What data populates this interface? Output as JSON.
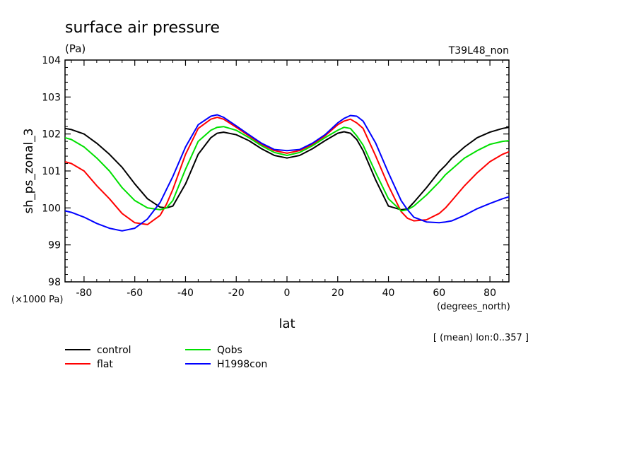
{
  "chart_data": {
    "type": "line",
    "title": "surface air pressure",
    "units_label": "(Pa)",
    "run_label": "T39L48_non",
    "ylabel": "sh_ps_zonal_3",
    "xlabel": "lat",
    "x_units": "(degrees_north)",
    "y_units": "(×1000 Pa)",
    "footnote": "[ (mean) lon:0..357 ]",
    "xlim": [
      -87.5,
      87.5
    ],
    "ylim": [
      98,
      104
    ],
    "x_ticks": [
      -80,
      -60,
      -40,
      -20,
      0,
      20,
      40,
      60,
      80
    ],
    "x_tick_labels": [
      "-80",
      "-60",
      "-40",
      "-20",
      "0",
      "20",
      "40",
      "60",
      "80"
    ],
    "y_ticks": [
      98,
      99,
      100,
      101,
      102,
      103,
      104
    ],
    "y_tick_labels": [
      "98",
      "99",
      "100",
      "101",
      "102",
      "103",
      "104"
    ],
    "grid": false,
    "legend_position": "bottom-left",
    "x": [
      -87.5,
      -85,
      -80,
      -75,
      -70,
      -65,
      -60,
      -55,
      -50,
      -47.5,
      -45,
      -40,
      -35,
      -30,
      -27.5,
      -25,
      -20,
      -15,
      -10,
      -5,
      0,
      5,
      10,
      15,
      20,
      22.5,
      25,
      27.5,
      30,
      35,
      40,
      45,
      47.5,
      50,
      55,
      60,
      62.5,
      65,
      70,
      75,
      80,
      85,
      87.5
    ],
    "series": [
      {
        "name": "control",
        "color": "#000000",
        "values": [
          102.15,
          102.12,
          102.0,
          101.75,
          101.45,
          101.1,
          100.65,
          100.25,
          100.02,
          100.0,
          100.05,
          100.65,
          101.45,
          101.9,
          102.02,
          102.05,
          101.98,
          101.82,
          101.6,
          101.42,
          101.35,
          101.42,
          101.6,
          101.82,
          102.02,
          102.06,
          102.02,
          101.85,
          101.55,
          100.75,
          100.05,
          99.95,
          99.97,
          100.15,
          100.55,
          100.98,
          101.15,
          101.35,
          101.65,
          101.9,
          102.05,
          102.15,
          102.18
        ]
      },
      {
        "name": "flat",
        "color": "#ff0000",
        "values": [
          101.25,
          101.2,
          101.0,
          100.6,
          100.25,
          99.85,
          99.6,
          99.55,
          99.8,
          100.1,
          100.5,
          101.45,
          102.15,
          102.4,
          102.45,
          102.4,
          102.18,
          101.95,
          101.72,
          101.55,
          101.48,
          101.55,
          101.72,
          101.95,
          102.25,
          102.35,
          102.4,
          102.3,
          102.15,
          101.4,
          100.6,
          99.9,
          99.72,
          99.65,
          99.68,
          99.85,
          100.0,
          100.2,
          100.6,
          100.95,
          101.25,
          101.45,
          101.52
        ]
      },
      {
        "name": "Qobs",
        "color": "#00e000",
        "values": [
          101.9,
          101.85,
          101.65,
          101.35,
          101.0,
          100.55,
          100.2,
          100.0,
          99.95,
          100.0,
          100.2,
          101.05,
          101.8,
          102.1,
          102.18,
          102.2,
          102.1,
          101.9,
          101.68,
          101.5,
          101.42,
          101.5,
          101.68,
          101.9,
          102.1,
          102.18,
          102.15,
          101.95,
          101.7,
          100.95,
          100.25,
          99.92,
          99.95,
          100.05,
          100.35,
          100.7,
          100.9,
          101.05,
          101.35,
          101.55,
          101.72,
          101.8,
          101.82
        ]
      },
      {
        "name": "H1998con",
        "color": "#0000ff",
        "values": [
          99.92,
          99.88,
          99.75,
          99.58,
          99.45,
          99.38,
          99.45,
          99.7,
          100.15,
          100.5,
          100.85,
          101.65,
          102.25,
          102.48,
          102.52,
          102.45,
          102.22,
          101.98,
          101.75,
          101.58,
          101.55,
          101.58,
          101.75,
          101.98,
          102.3,
          102.42,
          102.5,
          102.48,
          102.35,
          101.75,
          100.95,
          100.2,
          99.95,
          99.75,
          99.62,
          99.6,
          99.62,
          99.65,
          99.8,
          99.98,
          100.12,
          100.25,
          100.3
        ]
      }
    ]
  }
}
